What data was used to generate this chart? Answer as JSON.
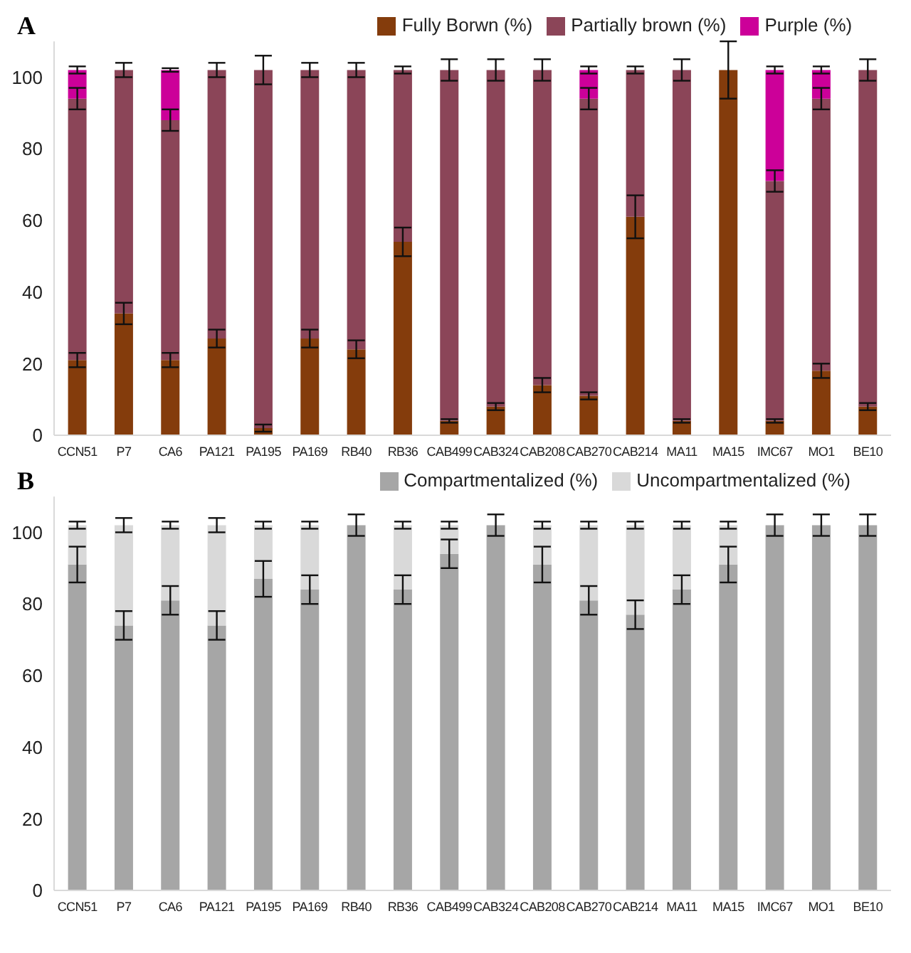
{
  "chart_data": [
    {
      "type": "bar",
      "title": "A",
      "stacked": true,
      "legend": "top",
      "grid": false,
      "categories": [
        "CCN51",
        "P7",
        "CA6",
        "PA121",
        "PA195",
        "PA169",
        "RB40",
        "RB36",
        "CAB499",
        "CAB324",
        "CAB208",
        "CAB270",
        "CAB214",
        "MA11",
        "MA15",
        "IMC67",
        "MO1",
        "BE10"
      ],
      "series": [
        {
          "name": "Fully  Borwn (%)",
          "color": "#843c0c",
          "values": [
            21,
            34,
            21,
            27,
            2,
            27,
            24,
            54,
            4,
            8,
            14,
            11,
            61,
            4,
            102,
            4,
            18,
            8
          ],
          "errors": [
            2,
            3,
            2,
            2.5,
            1,
            2.5,
            2.5,
            4,
            0.5,
            1,
            2,
            1,
            6,
            0.5,
            8,
            0.5,
            2,
            1
          ]
        },
        {
          "name": "Partially brown  (%)",
          "color": "#8b4558",
          "values": [
            73,
            68,
            67,
            75,
            100,
            75,
            78,
            48,
            98,
            94,
            88,
            83,
            41,
            98,
            0,
            67,
            76,
            94
          ],
          "errors": [
            3,
            2,
            3,
            2,
            4,
            2,
            2,
            1,
            3,
            3,
            3,
            3,
            1,
            3,
            null,
            3,
            3,
            3
          ]
        },
        {
          "name": "Purple (%)",
          "color": "#cc0099",
          "values": [
            8,
            0,
            14,
            0,
            0,
            0,
            0,
            0,
            0,
            0,
            0,
            8,
            0,
            0,
            0,
            31,
            8,
            0
          ],
          "errors": [
            1,
            null,
            0.5,
            null,
            null,
            null,
            null,
            null,
            null,
            null,
            null,
            1,
            null,
            null,
            null,
            1,
            1,
            null
          ]
        }
      ],
      "ylim": [
        0,
        110
      ],
      "yticks": [
        0,
        20,
        40,
        60,
        80,
        100
      ]
    },
    {
      "type": "bar",
      "title": "B",
      "stacked": true,
      "legend": "top",
      "grid": false,
      "categories": [
        "CCN51",
        "P7",
        "CA6",
        "PA121",
        "PA195",
        "PA169",
        "RB40",
        "RB36",
        "CAB499",
        "CAB324",
        "CAB208",
        "CAB270",
        "CAB214",
        "MA11",
        "MA15",
        "IMC67",
        "MO1",
        "BE10"
      ],
      "series": [
        {
          "name": "Compartmentalized (%)",
          "color": "#a6a6a6",
          "values": [
            91,
            74,
            81,
            74,
            87,
            84,
            102,
            84,
            94,
            102,
            91,
            81,
            77,
            84,
            91,
            102,
            102,
            102
          ],
          "errors": [
            5,
            4,
            4,
            4,
            5,
            4,
            3,
            4,
            4,
            3,
            5,
            4,
            4,
            4,
            5,
            3,
            3,
            3
          ]
        },
        {
          "name": "Uncompartmentalized  (%)",
          "color": "#d9d9d9",
          "values": [
            11,
            28,
            21,
            28,
            15,
            18,
            0,
            18,
            8,
            0,
            11,
            21,
            25,
            18,
            11,
            0,
            0,
            0
          ],
          "errors": [
            1,
            2,
            1,
            2,
            1,
            1,
            null,
            1,
            1,
            null,
            1,
            1,
            1,
            1,
            1,
            null,
            null,
            null
          ]
        }
      ],
      "ylim": [
        0,
        110
      ],
      "yticks": [
        0,
        20,
        40,
        60,
        80,
        100
      ]
    }
  ]
}
